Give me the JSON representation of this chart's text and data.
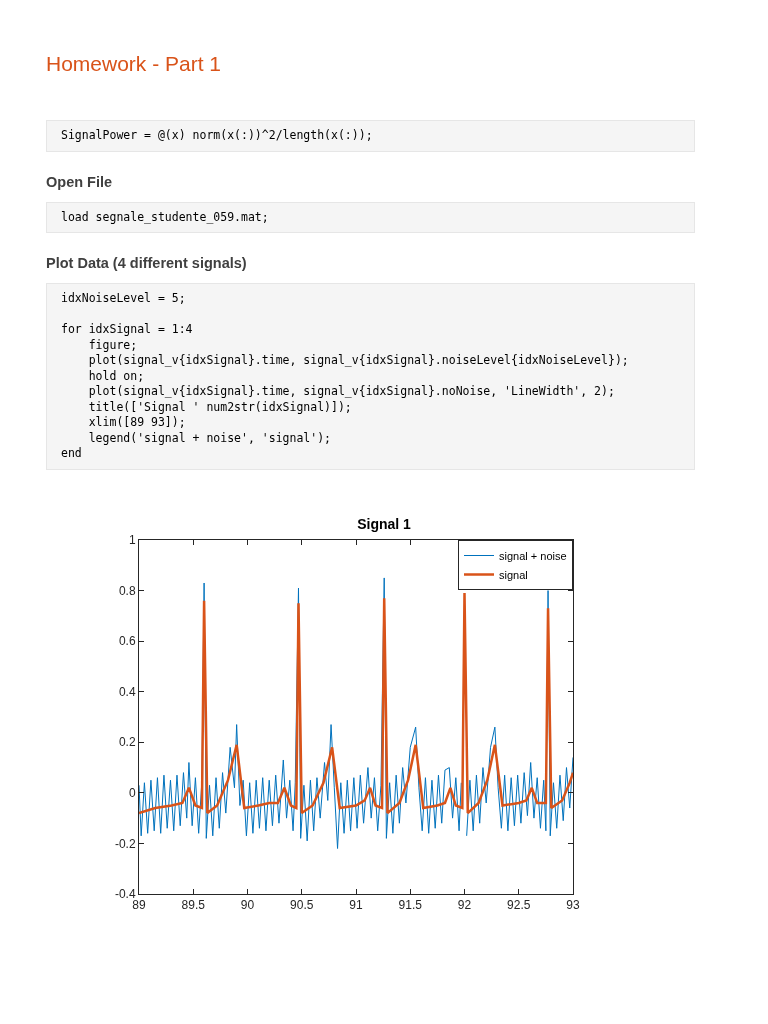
{
  "chart_data": {
    "type": "line",
    "title": "Signal 1",
    "annotations": [
      "Homework - Part 1",
      "SignalPower = @(x) norm(x(:))^2/length(x(:));",
      "Open File",
      "load segnale_studente_059.mat;",
      "Plot Data (4 different signals)",
      "idxNoiseLevel = 5;\n\nfor idxSignal = 1:4\n    figure;\n    plot(signal_v{idxSignal}.time, signal_v{idxSignal}.noiseLevel{idxNoiseLevel});\n    hold on;\n    plot(signal_v{idxSignal}.time, signal_v{idxSignal}.noNoise, 'LineWidth', 2);\n    title(['Signal ' num2str(idxSignal)]);\n    xlim([89 93]);\n    legend('signal + noise', 'signal');\nend"
    ],
    "xlim": [
      89,
      93
    ],
    "xticks": [
      89,
      89.5,
      90,
      90.5,
      91,
      91.5,
      92,
      92.5,
      93
    ],
    "ylim": [
      -0.4,
      1
    ],
    "yticks": [
      -0.4,
      -0.2,
      0,
      0.2,
      0.4,
      0.6,
      0.8,
      1
    ],
    "grid": false,
    "legend": "top right",
    "marker": "none",
    "line_style": "solid",
    "series": [
      {
        "name": "signal + noise",
        "color": "#0072bd",
        "x": [
          89.0,
          89.02,
          89.05,
          89.08,
          89.11,
          89.14,
          89.17,
          89.2,
          89.23,
          89.26,
          89.29,
          89.32,
          89.35,
          89.38,
          89.41,
          89.44,
          89.46,
          89.49,
          89.52,
          89.55,
          89.58,
          89.6,
          89.62,
          89.65,
          89.68,
          89.71,
          89.74,
          89.77,
          89.8,
          89.84,
          89.88,
          89.9,
          89.93,
          89.96,
          89.99,
          90.02,
          90.05,
          90.08,
          90.11,
          90.14,
          90.17,
          90.2,
          90.23,
          90.26,
          90.29,
          90.33,
          90.36,
          90.39,
          90.42,
          90.44,
          90.47,
          90.49,
          90.52,
          90.55,
          90.58,
          90.61,
          90.64,
          90.67,
          90.71,
          90.74,
          90.77,
          90.8,
          90.83,
          90.86,
          90.89,
          90.92,
          90.95,
          90.98,
          91.01,
          91.04,
          91.07,
          91.11,
          91.14,
          91.17,
          91.2,
          91.23,
          91.26,
          91.28,
          91.31,
          91.34,
          91.37,
          91.4,
          91.43,
          91.46,
          91.5,
          91.55,
          91.58,
          91.61,
          91.64,
          91.67,
          91.7,
          91.73,
          91.76,
          91.79,
          91.82,
          91.86,
          91.89,
          91.92,
          91.95,
          91.97,
          92.0,
          92.02,
          92.05,
          92.08,
          92.11,
          92.14,
          92.17,
          92.2,
          92.24,
          92.28,
          92.31,
          92.34,
          92.37,
          92.4,
          92.43,
          92.46,
          92.49,
          92.52,
          92.55,
          92.58,
          92.61,
          92.64,
          92.67,
          92.7,
          92.73,
          92.75,
          92.77,
          92.79,
          92.82,
          92.85,
          92.88,
          92.91,
          92.94,
          92.97,
          93.0
        ],
        "values": [
          0.03,
          -0.17,
          0.04,
          -0.16,
          0.05,
          -0.15,
          0.06,
          -0.16,
          0.07,
          -0.14,
          0.05,
          -0.15,
          0.07,
          -0.13,
          0.08,
          -0.1,
          0.12,
          -0.13,
          0.06,
          -0.16,
          0.05,
          0.83,
          -0.18,
          0.03,
          -0.17,
          0.06,
          -0.14,
          0.08,
          -0.08,
          0.18,
          0.02,
          0.27,
          -0.05,
          0.05,
          -0.17,
          0.04,
          -0.16,
          0.05,
          -0.14,
          0.06,
          -0.15,
          0.05,
          -0.13,
          0.07,
          -0.12,
          0.13,
          -0.1,
          0.05,
          -0.15,
          0.04,
          0.81,
          -0.18,
          0.03,
          -0.19,
          0.05,
          -0.15,
          0.06,
          -0.1,
          0.12,
          -0.03,
          0.27,
          0.02,
          -0.22,
          0.04,
          -0.16,
          0.05,
          -0.15,
          0.06,
          -0.14,
          0.07,
          -0.12,
          0.1,
          -0.1,
          0.06,
          -0.15,
          0.03,
          0.85,
          -0.18,
          0.04,
          -0.16,
          0.07,
          -0.12,
          0.1,
          -0.04,
          0.18,
          0.26,
          0.02,
          -0.15,
          0.06,
          -0.16,
          0.05,
          -0.14,
          0.07,
          -0.12,
          0.09,
          0.1,
          -0.1,
          0.06,
          -0.15,
          0.04,
          null,
          -0.17,
          0.05,
          -0.15,
          0.07,
          -0.12,
          0.1,
          -0.04,
          0.18,
          0.26,
          0.02,
          -0.14,
          0.07,
          -0.15,
          0.06,
          -0.13,
          0.07,
          -0.12,
          0.08,
          -0.09,
          0.12,
          -0.1,
          0.06,
          -0.14,
          0.05,
          -0.15,
          0.8,
          -0.17,
          0.04,
          -0.14,
          0.07,
          -0.11,
          0.1,
          -0.06,
          0.14
        ]
      },
      {
        "name": "signal",
        "color": "#d95319",
        "x": [
          89.0,
          89.15,
          89.3,
          89.4,
          89.46,
          89.52,
          89.58,
          89.6,
          89.63,
          89.72,
          89.82,
          89.9,
          89.97,
          90.1,
          90.2,
          90.28,
          90.34,
          90.4,
          90.45,
          90.47,
          90.5,
          90.6,
          90.7,
          90.78,
          90.85,
          91.0,
          91.08,
          91.13,
          91.18,
          91.24,
          91.26,
          91.29,
          91.4,
          91.48,
          91.55,
          91.62,
          91.75,
          91.82,
          91.87,
          91.92,
          91.98,
          92.0,
          92.03,
          92.13,
          92.21,
          92.28,
          92.35,
          92.5,
          92.57,
          92.62,
          92.67,
          92.75,
          92.77,
          92.8,
          92.9,
          92.97,
          93.0
        ],
        "values": [
          -0.08,
          -0.06,
          -0.05,
          -0.04,
          0.02,
          -0.05,
          -0.06,
          0.76,
          -0.08,
          -0.05,
          0.05,
          0.19,
          -0.06,
          -0.05,
          -0.04,
          -0.04,
          0.02,
          -0.05,
          -0.06,
          0.75,
          -0.08,
          -0.05,
          0.04,
          0.18,
          -0.06,
          -0.05,
          -0.03,
          0.02,
          -0.05,
          -0.06,
          0.77,
          -0.08,
          -0.04,
          0.05,
          0.19,
          -0.06,
          -0.05,
          -0.04,
          0.02,
          -0.05,
          -0.06,
          0.79,
          -0.08,
          -0.04,
          0.05,
          0.19,
          -0.05,
          -0.04,
          -0.03,
          0.02,
          -0.04,
          -0.04,
          0.73,
          -0.06,
          -0.03,
          0.04,
          0.08
        ]
      }
    ]
  }
}
